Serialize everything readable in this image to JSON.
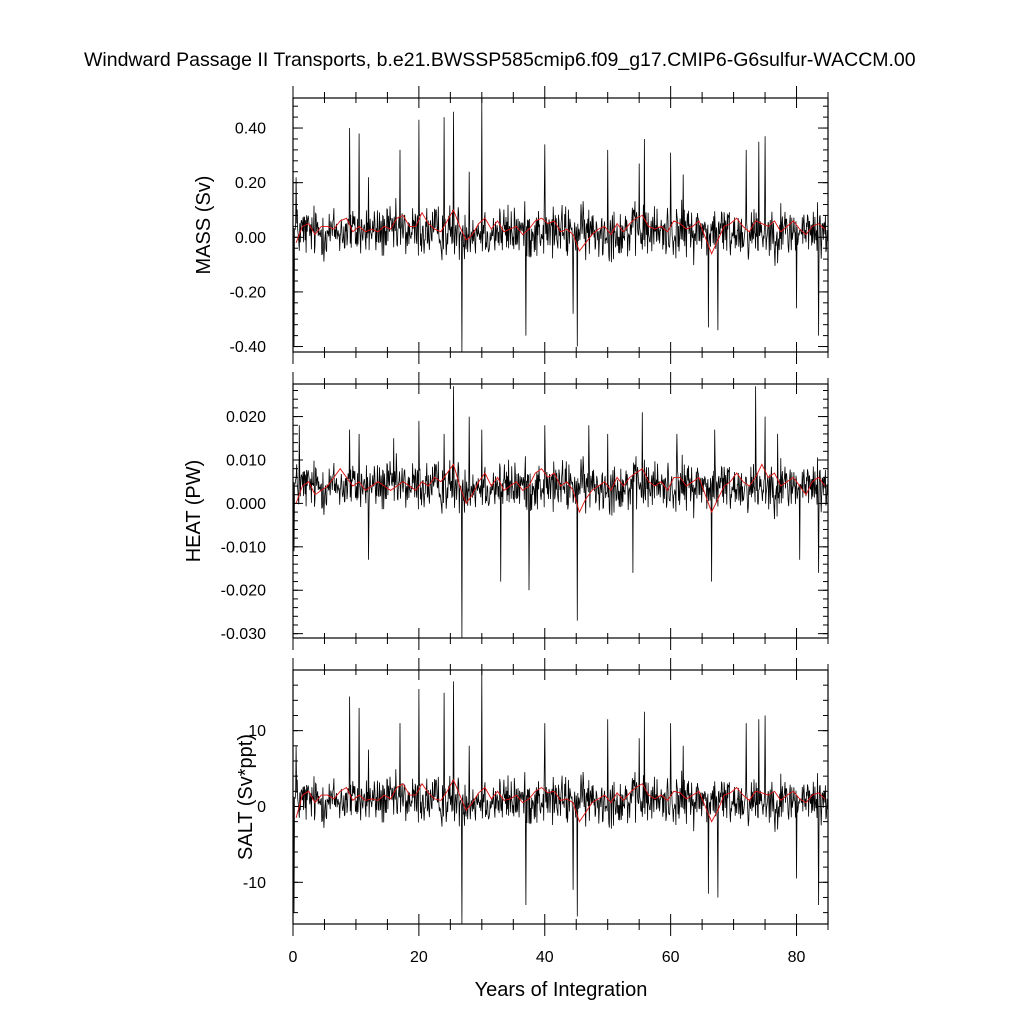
{
  "title": "Windward Passage II Transports, b.e21.BWSSP585cmip6.f09_g17.CMIP6-G6sulfur-WACCM.00",
  "colors": {
    "raw": "#000000",
    "smoothed": "#e01010",
    "frame": "#000000"
  },
  "chart_data": [
    {
      "type": "line",
      "panel": "mass",
      "title": "",
      "xlabel": "",
      "ylabel": "MASS (Sv)",
      "xlim": [
        0,
        85
      ],
      "ylim": [
        -0.42,
        0.51
      ],
      "yticks": [
        -0.4,
        -0.2,
        0.0,
        0.2,
        0.4
      ],
      "ytick_labels": [
        "-0.40",
        "-0.20",
        "0.00",
        "0.20",
        "0.40"
      ],
      "series": [
        {
          "role": "monthly",
          "mean": 0.02,
          "amplitude": 0.09,
          "spikes": [
            [
              0.2,
              -0.4
            ],
            [
              0.5,
              0.22
            ],
            [
              9.0,
              0.4
            ],
            [
              10.5,
              0.38
            ],
            [
              12.0,
              0.22
            ],
            [
              17.0,
              0.32
            ],
            [
              20.0,
              0.43
            ],
            [
              24.0,
              0.44
            ],
            [
              25.5,
              0.46
            ],
            [
              26.8,
              -0.42
            ],
            [
              28.0,
              0.24
            ],
            [
              30.0,
              0.51
            ],
            [
              37.0,
              -0.36
            ],
            [
              40.0,
              0.34
            ],
            [
              44.5,
              -0.28
            ],
            [
              45.2,
              -0.4
            ],
            [
              50.0,
              0.32
            ],
            [
              55.0,
              0.27
            ],
            [
              55.8,
              0.36
            ],
            [
              60.0,
              0.31
            ],
            [
              62.0,
              0.23
            ],
            [
              66.0,
              -0.33
            ],
            [
              67.5,
              -0.34
            ],
            [
              72.0,
              0.32
            ],
            [
              74.0,
              0.35
            ],
            [
              75.0,
              0.37
            ],
            [
              80.0,
              -0.26
            ],
            [
              83.5,
              -0.36
            ]
          ]
        },
        {
          "role": "annual-mean",
          "values": [
            -0.02,
            0.04,
            0.05,
            0.01,
            0.04,
            0.04,
            0.03,
            0.06,
            0.07,
            0.02,
            0.04,
            0.02,
            0.03,
            0.02,
            0.04,
            0.03,
            0.07,
            0.08,
            0.04,
            0.04,
            0.09,
            0.05,
            0.03,
            0.02,
            0.06,
            0.1,
            0.04,
            -0.01,
            0.01,
            0.05,
            0.07,
            0.03,
            0.06,
            0.02,
            0.03,
            0.04,
            0.01,
            0.03,
            0.06,
            0.07,
            0.05,
            0.06,
            0.02,
            0.03,
            0.01,
            -0.05,
            -0.02,
            0.01,
            0.03,
            0.04,
            0.01,
            0.05,
            0.02,
            0.05,
            0.07,
            0.08,
            0.04,
            0.03,
            0.04,
            0.02,
            0.06,
            0.05,
            0.03,
            0.04,
            0.06,
            0.0,
            -0.06,
            -0.01,
            0.04,
            0.05,
            0.07,
            0.04,
            0.02,
            0.06,
            0.05,
            0.04,
            0.06,
            0.02,
            0.04,
            0.06,
            0.03,
            0.01,
            0.04,
            0.05,
            0.03
          ]
        }
      ]
    },
    {
      "type": "line",
      "panel": "heat",
      "title": "",
      "xlabel": "",
      "ylabel": "HEAT (PW)",
      "xlim": [
        0,
        85
      ],
      "ylim": [
        -0.031,
        0.0275
      ],
      "yticks": [
        -0.03,
        -0.02,
        -0.01,
        0.0,
        0.01,
        0.02
      ],
      "ytick_labels": [
        "-0.030",
        "-0.020",
        "-0.010",
        "0.000",
        "0.010",
        "0.020"
      ],
      "series": [
        {
          "role": "monthly",
          "mean": 0.004,
          "amplitude": 0.0055,
          "spikes": [
            [
              0.2,
              -0.011
            ],
            [
              1.0,
              0.018
            ],
            [
              9.0,
              0.017
            ],
            [
              10.5,
              0.016
            ],
            [
              12.0,
              -0.013
            ],
            [
              16.0,
              0.015
            ],
            [
              20.0,
              0.019
            ],
            [
              24.0,
              0.016
            ],
            [
              25.5,
              0.027
            ],
            [
              26.8,
              -0.031
            ],
            [
              28.0,
              0.02
            ],
            [
              30.0,
              0.017
            ],
            [
              33.0,
              -0.018
            ],
            [
              37.5,
              -0.02
            ],
            [
              40.0,
              0.018
            ],
            [
              45.2,
              -0.027
            ],
            [
              47.0,
              0.018
            ],
            [
              50.0,
              0.016
            ],
            [
              54.0,
              -0.016
            ],
            [
              55.5,
              0.021
            ],
            [
              61.0,
              0.016
            ],
            [
              66.5,
              -0.018
            ],
            [
              67.0,
              0.017
            ],
            [
              73.5,
              0.027
            ],
            [
              75.0,
              0.02
            ],
            [
              77.0,
              0.016
            ],
            [
              80.5,
              -0.013
            ],
            [
              83.5,
              -0.016
            ]
          ]
        },
        {
          "role": "annual-mean",
          "values": [
            0.0,
            0.004,
            0.005,
            0.002,
            0.003,
            0.004,
            0.006,
            0.008,
            0.006,
            0.004,
            0.005,
            0.003,
            0.004,
            0.005,
            0.004,
            0.003,
            0.004,
            0.005,
            0.004,
            0.003,
            0.005,
            0.004,
            0.006,
            0.005,
            0.007,
            0.009,
            0.004,
            0.0,
            0.002,
            0.005,
            0.007,
            0.004,
            0.006,
            0.003,
            0.004,
            0.005,
            0.003,
            0.004,
            0.007,
            0.008,
            0.006,
            0.007,
            0.004,
            0.005,
            0.003,
            -0.002,
            0.001,
            0.003,
            0.004,
            0.005,
            0.003,
            0.006,
            0.004,
            0.006,
            0.007,
            0.008,
            0.005,
            0.004,
            0.005,
            0.003,
            0.006,
            0.006,
            0.004,
            0.005,
            0.006,
            0.002,
            -0.002,
            0.001,
            0.004,
            0.005,
            0.007,
            0.005,
            0.004,
            0.006,
            0.009,
            0.006,
            0.007,
            0.004,
            0.005,
            0.006,
            0.004,
            0.002,
            0.005,
            0.006,
            0.004
          ]
        }
      ]
    },
    {
      "type": "line",
      "panel": "salt",
      "title": "",
      "xlabel": "Years of Integration",
      "ylabel": "SALT (Sv*ppt)",
      "xlim": [
        0,
        85
      ],
      "xticks": [
        0,
        20,
        40,
        60,
        80
      ],
      "xtick_labels": [
        "0",
        "20",
        "40",
        "60",
        "80"
      ],
      "ylim": [
        -15.5,
        18
      ],
      "yticks": [
        -10,
        0,
        10
      ],
      "ytick_labels": [
        "-10",
        "0",
        "10"
      ],
      "series": [
        {
          "role": "monthly",
          "mean": 0.8,
          "amplitude": 3.0,
          "spikes": [
            [
              0.2,
              -14.0
            ],
            [
              0.5,
              8.0
            ],
            [
              9.0,
              14.5
            ],
            [
              10.5,
              13.0
            ],
            [
              12.0,
              7.5
            ],
            [
              17.0,
              11.0
            ],
            [
              20.0,
              15.5
            ],
            [
              24.0,
              15.0
            ],
            [
              25.5,
              16.5
            ],
            [
              26.8,
              -15.5
            ],
            [
              28.0,
              8.0
            ],
            [
              30.0,
              18.0
            ],
            [
              37.0,
              -13.0
            ],
            [
              40.0,
              11.0
            ],
            [
              44.5,
              -11.0
            ],
            [
              45.2,
              -14.5
            ],
            [
              50.0,
              11.5
            ],
            [
              55.0,
              9.0
            ],
            [
              55.8,
              12.5
            ],
            [
              60.0,
              11.0
            ],
            [
              62.0,
              8.0
            ],
            [
              66.0,
              -11.5
            ],
            [
              67.5,
              -12.0
            ],
            [
              72.0,
              11.0
            ],
            [
              74.0,
              11.5
            ],
            [
              75.0,
              12.0
            ],
            [
              80.0,
              -9.5
            ],
            [
              83.5,
              -13.0
            ]
          ]
        },
        {
          "role": "annual-mean",
          "values": [
            -1.5,
            1.5,
            2.0,
            0.5,
            1.5,
            1.5,
            1.0,
            2.0,
            2.5,
            0.8,
            1.5,
            0.8,
            1.0,
            0.8,
            1.5,
            1.0,
            2.5,
            3.0,
            1.5,
            1.5,
            3.0,
            1.8,
            1.0,
            0.8,
            2.0,
            3.5,
            1.5,
            -0.5,
            0.5,
            1.8,
            2.5,
            1.0,
            2.0,
            0.8,
            1.0,
            1.5,
            0.5,
            1.0,
            2.0,
            2.5,
            1.8,
            2.0,
            0.8,
            1.0,
            0.5,
            -2.0,
            -0.8,
            0.5,
            1.0,
            1.5,
            0.5,
            1.8,
            0.8,
            1.8,
            2.5,
            3.0,
            1.5,
            1.0,
            1.5,
            0.8,
            2.0,
            1.8,
            1.0,
            1.5,
            2.0,
            0.0,
            -2.0,
            -0.5,
            1.5,
            1.8,
            2.5,
            1.5,
            0.8,
            2.0,
            1.8,
            1.5,
            2.0,
            0.8,
            1.5,
            2.0,
            1.0,
            0.5,
            1.5,
            1.8,
            1.0
          ]
        }
      ]
    }
  ]
}
